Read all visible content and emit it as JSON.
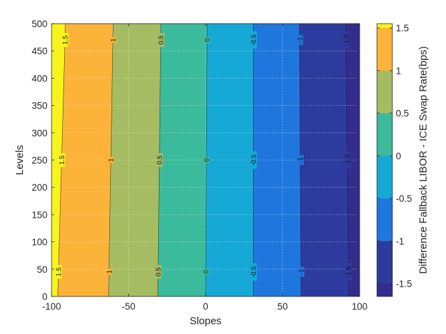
{
  "chart_data": {
    "type": "filled-contour",
    "xlabel": "Slopes",
    "ylabel": "Levels",
    "colorbar_label": "Difference Fallback LIBOR - ICE Swap Rate(bps)",
    "xlim": [
      -100,
      100
    ],
    "ylim": [
      0,
      500
    ],
    "clim": [
      -1.65,
      1.55
    ],
    "x_ticks": [
      "-100",
      "-50",
      "0",
      "50",
      "100"
    ],
    "y_ticks": [
      "0",
      "50",
      "100",
      "150",
      "200",
      "250",
      "300",
      "350",
      "400",
      "450",
      "500"
    ],
    "colorbar_ticks": [
      "-1.5",
      "-1",
      "-0.5",
      "0",
      "0.5",
      "1",
      "1.5"
    ],
    "grid": true,
    "colormap": "parula",
    "bands": [
      {
        "from": -1.65,
        "to": -1.5,
        "color": "#332c8c"
      },
      {
        "from": -1.5,
        "to": -1.0,
        "color": "#2e3b9e"
      },
      {
        "from": -1.0,
        "to": -0.5,
        "color": "#1f77de"
      },
      {
        "from": -0.5,
        "to": 0.0,
        "color": "#16a9d6"
      },
      {
        "from": 0.0,
        "to": 0.5,
        "color": "#3cba9c"
      },
      {
        "from": 0.5,
        "to": 1.0,
        "color": "#a6bc62"
      },
      {
        "from": 1.0,
        "to": 1.5,
        "color": "#fbb33a"
      },
      {
        "from": 1.5,
        "to": 1.55,
        "color": "#f6f41c"
      }
    ],
    "contour_lines": [
      {
        "level": "1.5",
        "value": 1.5,
        "slope_at_level_0": -96,
        "slope_at_level_500": -91
      },
      {
        "level": "1",
        "value": 1.0,
        "slope_at_level_0": -63,
        "slope_at_level_500": -60
      },
      {
        "level": "0.5",
        "value": 0.5,
        "slope_at_level_0": -31,
        "slope_at_level_500": -29
      },
      {
        "level": "0",
        "value": 0.0,
        "slope_at_level_0": 0,
        "slope_at_level_500": 1
      },
      {
        "level": "-0.5",
        "value": -0.5,
        "slope_at_level_0": 31,
        "slope_at_level_500": 31
      },
      {
        "level": "-1",
        "value": -1.0,
        "slope_at_level_0": 62,
        "slope_at_level_500": 61
      },
      {
        "level": "-1.5",
        "value": -1.5,
        "slope_at_level_0": 93,
        "slope_at_level_500": 91
      }
    ],
    "contour_label_levels": [
      45,
      250,
      470
    ]
  }
}
